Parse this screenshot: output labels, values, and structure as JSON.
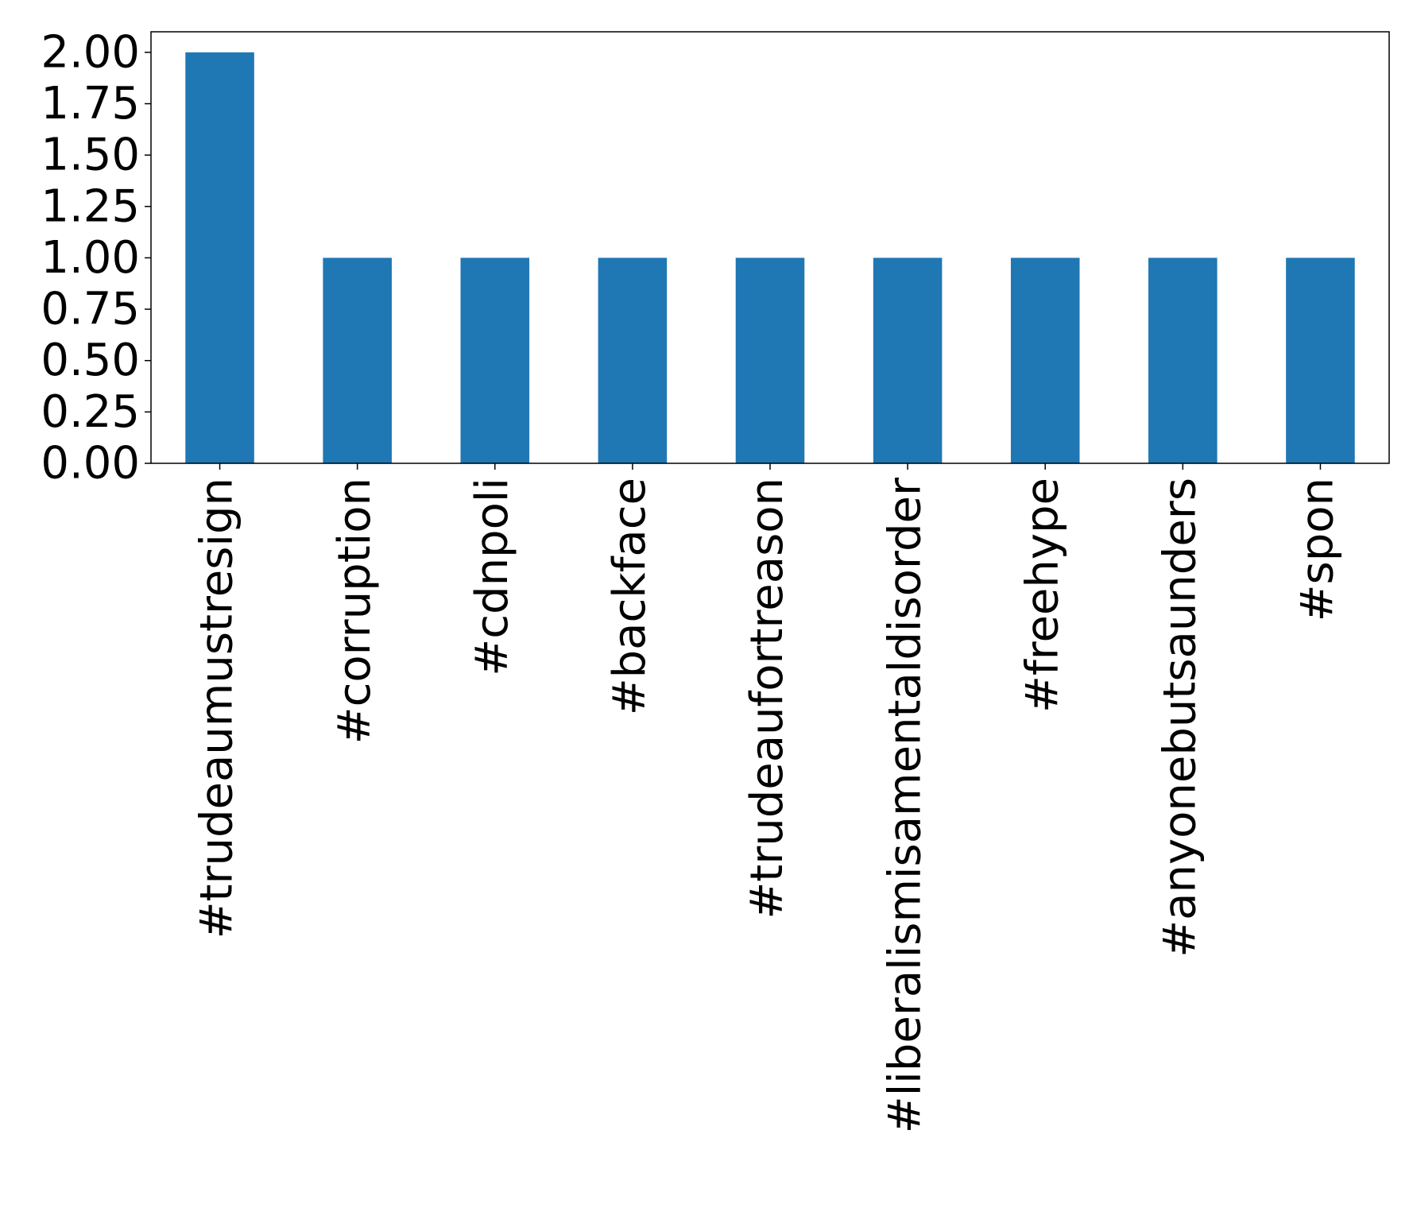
{
  "chart_data": {
    "type": "bar",
    "categories": [
      "#trudeaumustresign",
      "#corruption",
      "#cdnpoli",
      "#backface",
      "#trudeaufortreason",
      "#liberalismisamentaldisorder",
      "#freehype",
      "#anyonebutsaunders",
      "#spon"
    ],
    "values": [
      2,
      1,
      1,
      1,
      1,
      1,
      1,
      1,
      1
    ],
    "ylim": [
      0,
      2.1
    ],
    "yticks": [
      "0.00",
      "0.25",
      "0.50",
      "0.75",
      "1.00",
      "1.25",
      "1.50",
      "1.75",
      "2.00"
    ],
    "title": "",
    "xlabel": "",
    "ylabel": "",
    "bar_color": "#1f77b4",
    "grid": false,
    "legend": "none"
  }
}
